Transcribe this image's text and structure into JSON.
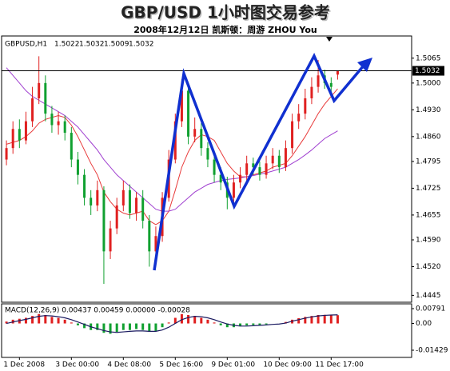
{
  "chart_data": {
    "type": "candlestick",
    "title": "GBP/USD 1小时图交易参考",
    "subtitle": "2008年12月12日   凯斯顿：周游 ZHOU You",
    "symbol": "GBPUSD,H1",
    "categories": [
      null,
      null,
      "1 Dec 2008",
      null,
      null,
      null,
      null,
      null,
      null,
      null,
      "3 Dec 00:00",
      null,
      null,
      null,
      null,
      null,
      null,
      null,
      "4 Dec 08:00",
      null,
      null,
      null,
      null,
      null,
      null,
      null,
      "5 Dec 16:00",
      null,
      null,
      null,
      null,
      null,
      null,
      null,
      "9 Dec 01:00",
      null,
      null,
      null,
      null,
      null,
      null,
      null,
      "10 Dec 09:00",
      null,
      null,
      null,
      null,
      null,
      null,
      null,
      "11 Dec 17:00",
      null
    ],
    "open": [
      1.48,
      1.483,
      1.488,
      1.485,
      1.49,
      1.496,
      1.5,
      1.492,
      1.489,
      1.49,
      1.487,
      1.48,
      1.476,
      1.47,
      1.468,
      1.472,
      1.456,
      1.462,
      1.468,
      1.472,
      1.466,
      1.47,
      1.464,
      1.456,
      1.46,
      1.47,
      1.48,
      1.49,
      1.498,
      1.486,
      1.488,
      1.483,
      1.48,
      1.476,
      1.474,
      1.47,
      1.474,
      1.476,
      1.479,
      1.478,
      1.476,
      1.479,
      1.481,
      1.478,
      1.483,
      1.49,
      1.492,
      1.496,
      1.499,
      1.502,
      1.5,
      1.5022
    ],
    "high": [
      1.485,
      1.49,
      1.4905,
      1.4925,
      1.499,
      1.507,
      1.502,
      1.494,
      1.4925,
      1.4915,
      1.4885,
      1.482,
      1.4775,
      1.472,
      1.4745,
      1.473,
      1.464,
      1.47,
      1.4745,
      1.4735,
      1.4715,
      1.472,
      1.4655,
      1.4625,
      1.4715,
      1.4825,
      1.492,
      1.501,
      1.499,
      1.491,
      1.4895,
      1.4845,
      1.4815,
      1.478,
      1.4755,
      1.476,
      1.478,
      1.481,
      1.4805,
      1.4795,
      1.481,
      1.483,
      1.4825,
      1.485,
      1.492,
      1.4945,
      1.4985,
      1.5015,
      1.506,
      1.5035,
      1.5015,
      1.5032
    ],
    "low": [
      1.4785,
      1.4815,
      1.483,
      1.484,
      1.4885,
      1.4945,
      1.49,
      1.487,
      1.4865,
      1.485,
      1.478,
      1.4735,
      1.468,
      1.4655,
      1.4665,
      1.4475,
      1.454,
      1.4605,
      1.4665,
      1.4645,
      1.464,
      1.462,
      1.452,
      1.454,
      1.4585,
      1.469,
      1.479,
      1.4885,
      1.484,
      1.4845,
      1.481,
      1.478,
      1.474,
      1.472,
      1.467,
      1.4685,
      1.4725,
      1.4745,
      1.476,
      1.4745,
      1.475,
      1.4775,
      1.4765,
      1.477,
      1.4815,
      1.488,
      1.4905,
      1.4945,
      1.4975,
      1.4985,
      1.4975,
      1.5009
    ],
    "close": [
      1.483,
      1.488,
      1.485,
      1.49,
      1.496,
      1.5,
      1.492,
      1.489,
      1.49,
      1.487,
      1.48,
      1.476,
      1.47,
      1.468,
      1.472,
      1.456,
      1.462,
      1.468,
      1.472,
      1.466,
      1.47,
      1.464,
      1.456,
      1.46,
      1.47,
      1.48,
      1.49,
      1.498,
      1.486,
      1.488,
      1.483,
      1.48,
      1.476,
      1.474,
      1.47,
      1.474,
      1.476,
      1.479,
      1.478,
      1.476,
      1.479,
      1.481,
      1.478,
      1.483,
      1.49,
      1.492,
      1.496,
      1.499,
      1.502,
      1.5,
      1.499,
      1.5032
    ],
    "up_color": "#e02020",
    "down_color": "#10a030",
    "series": [
      {
        "color": "#e83a3a",
        "values": [
          1.484,
          1.4845,
          1.485,
          1.486,
          1.4875,
          1.4895,
          1.4905,
          1.491,
          1.4915,
          1.491,
          1.489,
          1.486,
          1.4825,
          1.479,
          1.476,
          1.4715,
          1.469,
          1.467,
          1.466,
          1.4655,
          1.466,
          1.4665,
          1.464,
          1.463,
          1.464,
          1.4665,
          1.472,
          1.478,
          1.482,
          1.485,
          1.4865,
          1.486,
          1.485,
          1.482,
          1.479,
          1.477,
          1.4755,
          1.4755,
          1.476,
          1.4765,
          1.477,
          1.478,
          1.4785,
          1.479,
          1.481,
          1.4835,
          1.486,
          1.489,
          1.492,
          1.4945,
          1.4965,
          1.4985
        ]
      },
      {
        "color": "#a040d0",
        "values": [
          1.504,
          1.502,
          1.5,
          1.498,
          1.4965,
          1.4955,
          1.4945,
          1.4935,
          1.4925,
          1.4915,
          1.49,
          1.4885,
          1.4865,
          1.4845,
          1.4825,
          1.48,
          1.478,
          1.476,
          1.4745,
          1.473,
          1.4715,
          1.47,
          1.4685,
          1.467,
          1.4665,
          1.4665,
          1.467,
          1.4685,
          1.47,
          1.4715,
          1.4725,
          1.4735,
          1.474,
          1.4745,
          1.4748,
          1.475,
          1.4752,
          1.4755,
          1.4758,
          1.4762,
          1.4765,
          1.477,
          1.4775,
          1.478,
          1.479,
          1.48,
          1.4812,
          1.4825,
          1.484,
          1.4855,
          1.4865,
          1.4875
        ]
      }
    ],
    "ylim": [
      1.4427,
      1.5123
    ],
    "yticks": [
      1.5065,
      {
        "value": 1.5,
        "label": "1.5000"
      },
      {
        "value": 1.493,
        "label": "1.4930"
      },
      {
        "value": 1.486,
        "label": "1.4860"
      },
      1.4795,
      1.4725,
      1.4655,
      {
        "value": 1.459,
        "label": "1.4590"
      },
      {
        "value": 1.452,
        "label": "1.4520"
      },
      1.4445
    ],
    "macd": {
      "label": "MACD(12,26,9) 0.00437 0.00459 0.00000 -0.00028",
      "histogram": [
        0.001,
        0.002,
        0.0025,
        0.003,
        0.004,
        0.005,
        0.0045,
        0.0035,
        0.003,
        0.002,
        0.0005,
        -0.001,
        -0.0025,
        -0.0035,
        -0.0035,
        -0.005,
        -0.0055,
        -0.0045,
        -0.0035,
        -0.0035,
        -0.003,
        -0.0035,
        -0.0045,
        -0.004,
        -0.002,
        0.0005,
        0.003,
        0.005,
        0.0045,
        0.004,
        0.003,
        0.002,
        0.0005,
        -0.001,
        -0.002,
        -0.002,
        -0.0015,
        -0.001,
        -0.0008,
        -0.0008,
        -0.0005,
        0,
        0,
        0.0008,
        0.002,
        0.0028,
        0.0035,
        0.004,
        0.0045,
        0.0046,
        0.0044,
        0.0044
      ],
      "line": [
        0,
        0.0008,
        0.0015,
        0.0022,
        0.003,
        0.0038,
        0.0042,
        0.004,
        0.0036,
        0.003,
        0.002,
        0.0008,
        -0.0005,
        -0.0018,
        -0.0028,
        -0.0038,
        -0.0045,
        -0.0048,
        -0.0045,
        -0.0042,
        -0.004,
        -0.004,
        -0.0042,
        -0.0042,
        -0.0035,
        -0.002,
        0,
        0.002,
        0.0032,
        0.0038,
        0.0036,
        0.003,
        0.002,
        0.0008,
        -0.0003,
        -0.001,
        -0.0014,
        -0.0014,
        -0.0012,
        -0.001,
        -0.0008,
        -0.0005,
        -0.0003,
        0.0002,
        0.0012,
        0.002,
        0.0028,
        0.0035,
        0.004,
        0.0043,
        0.0045,
        0.0046
      ],
      "line_color": "#1a1a60",
      "ylim": [
        -0.01813,
        0.01047
      ],
      "yticks": [
        0.00791,
        {
          "value": 0,
          "label": "0.00"
        },
        -0.01429
      ]
    }
  }
}
